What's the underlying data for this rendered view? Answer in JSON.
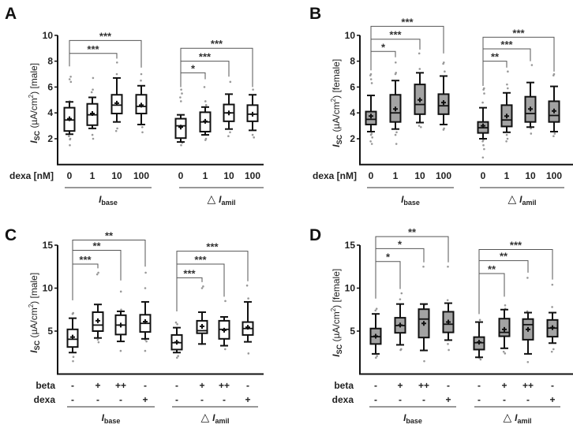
{
  "chart_data": [
    {
      "type": "box",
      "panel": "A",
      "ylabel": {
        "main": "I",
        "sub": "SC",
        "unit": " (µA/cm",
        "sup": "2",
        "tail": ") [male]"
      },
      "ylim": [
        0,
        10
      ],
      "yticks": [
        2,
        4,
        6,
        8,
        10
      ],
      "fill": "#ffffff",
      "row_labels": [
        "dexa [nM]"
      ],
      "groups": [
        {
          "label": "I",
          "sub": "base",
          "prefix": "",
          "categories": [
            [
              "0"
            ],
            [
              "1"
            ],
            [
              "10"
            ],
            [
              "100"
            ]
          ],
          "boxes": [
            {
              "wl": 2.35,
              "q1": 2.6,
              "med": 3.45,
              "q3": 4.4,
              "wh": 4.85,
              "mean": 3.55,
              "pts": [
                1.5,
                1.95,
                2.0,
                2.2,
                4.9,
                6.4,
                6.6,
                6.8
              ]
            },
            {
              "wl": 2.8,
              "q1": 3.05,
              "med": 3.85,
              "q3": 4.7,
              "wh": 5.2,
              "mean": 3.95,
              "pts": [
                2.0,
                2.3,
                2.8,
                5.6,
                5.8,
                6.7
              ]
            },
            {
              "wl": 3.3,
              "q1": 3.95,
              "med": 4.6,
              "q3": 5.4,
              "wh": 6.7,
              "mean": 4.75,
              "pts": [
                2.6,
                2.8,
                7.0,
                7.9
              ]
            },
            {
              "wl": 3.1,
              "q1": 3.95,
              "med": 4.5,
              "q3": 5.4,
              "wh": 6.1,
              "mean": 4.6,
              "pts": [
                2.5,
                2.9,
                6.5,
                7.0
              ]
            }
          ],
          "brackets": [
            {
              "from": 0,
              "to": 2,
              "y": 8.6,
              "left_end": 7.6,
              "right_end": 8.2,
              "label": "***"
            },
            {
              "from": 0,
              "to": 3,
              "y": 9.6,
              "left_end": 7.6,
              "right_end": 7.5,
              "label": "***"
            }
          ]
        },
        {
          "label": "I",
          "sub": "amil",
          "prefix": "△ ",
          "categories": [
            [
              "0"
            ],
            [
              "1"
            ],
            [
              "10"
            ],
            [
              "100"
            ]
          ],
          "boxes": [
            {
              "wl": 1.75,
              "q1": 2.05,
              "med": 3.0,
              "q3": 3.55,
              "wh": 3.85,
              "mean": 2.9,
              "pts": [
                1.5,
                1.7,
                4.9,
                5.2,
                5.5,
                5.8
              ]
            },
            {
              "wl": 2.3,
              "q1": 2.55,
              "med": 3.3,
              "q3": 4.05,
              "wh": 4.45,
              "mean": 3.35,
              "pts": [
                1.9,
                2.0,
                4.6,
                4.9,
                6.0
              ]
            },
            {
              "wl": 2.75,
              "q1": 3.35,
              "med": 4.0,
              "q3": 4.65,
              "wh": 5.45,
              "mean": 4.0,
              "pts": [
                2.2,
                2.5,
                6.4
              ]
            },
            {
              "wl": 2.65,
              "q1": 3.35,
              "med": 3.9,
              "q3": 4.6,
              "wh": 5.4,
              "mean": 3.9,
              "pts": [
                2.1,
                2.3,
                5.8
              ]
            }
          ],
          "brackets": [
            {
              "from": 0,
              "to": 1,
              "y": 7.1,
              "left_end": 6.0,
              "right_end": 6.6,
              "label": "*"
            },
            {
              "from": 0,
              "to": 2,
              "y": 8.0,
              "left_end": 6.0,
              "right_end": 6.8,
              "label": "***"
            },
            {
              "from": 0,
              "to": 3,
              "y": 9.0,
              "left_end": 6.0,
              "right_end": 6.0,
              "label": "***"
            }
          ]
        }
      ]
    },
    {
      "type": "box",
      "panel": "B",
      "ylabel": {
        "main": "I",
        "sub": "SC",
        "unit": " (µA/cm",
        "sup": "2",
        "tail": ") [female]"
      },
      "ylim": [
        0,
        10
      ],
      "yticks": [
        2,
        4,
        6,
        8,
        10
      ],
      "fill": "#a3a3a3",
      "row_labels": [
        "dexa [nM]"
      ],
      "groups": [
        {
          "label": "I",
          "sub": "base",
          "prefix": "",
          "categories": [
            [
              "0"
            ],
            [
              "1"
            ],
            [
              "10"
            ],
            [
              "100"
            ]
          ],
          "boxes": [
            {
              "wl": 2.55,
              "q1": 3.1,
              "med": 3.5,
              "q3": 4.1,
              "wh": 5.35,
              "mean": 3.75,
              "pts": [
                1.6,
                1.8,
                2.1,
                2.3,
                2.4,
                6.3,
                6.6,
                6.9,
                7.0
              ]
            },
            {
              "wl": 2.75,
              "q1": 3.3,
              "med": 4.0,
              "q3": 5.4,
              "wh": 6.5,
              "mean": 4.3,
              "pts": [
                1.6,
                2.3,
                2.5,
                7.0,
                7.1,
                7.9
              ]
            },
            {
              "wl": 3.25,
              "q1": 3.9,
              "med": 4.65,
              "q3": 6.2,
              "wh": 7.1,
              "mean": 5.0,
              "pts": [
                2.9,
                3.0,
                7.4,
                8.6
              ]
            },
            {
              "wl": 3.1,
              "q1": 3.9,
              "med": 4.55,
              "q3": 5.45,
              "wh": 6.85,
              "mean": 4.8,
              "pts": [
                2.7,
                2.8,
                7.2,
                7.8,
                7.9
              ]
            }
          ],
          "brackets": [
            {
              "from": 0,
              "to": 1,
              "y": 8.75,
              "left_end": 7.3,
              "right_end": 8.3,
              "label": "*"
            },
            {
              "from": 0,
              "to": 2,
              "y": 9.7,
              "left_end": 7.3,
              "right_end": 8.9,
              "label": "***"
            },
            {
              "from": 0,
              "to": 3,
              "y": 10.7,
              "left_end": 7.3,
              "right_end": 8.6,
              "label": "***"
            }
          ]
        },
        {
          "label": "I",
          "sub": "amil",
          "prefix": "△ ",
          "categories": [
            [
              "0"
            ],
            [
              "1"
            ],
            [
              "10"
            ],
            [
              "100"
            ]
          ],
          "boxes": [
            {
              "wl": 2.0,
              "q1": 2.45,
              "med": 2.85,
              "q3": 3.3,
              "wh": 4.4,
              "mean": 3.0,
              "pts": [
                0.55,
                1.2,
                1.5,
                1.8,
                1.9,
                4.8,
                5.5,
                5.8,
                5.9
              ]
            },
            {
              "wl": 2.5,
              "q1": 2.95,
              "med": 3.45,
              "q3": 4.6,
              "wh": 5.55,
              "mean": 3.75,
              "pts": [
                1.8,
                2.0,
                2.3,
                5.9,
                6.2,
                7.2
              ]
            },
            {
              "wl": 2.9,
              "q1": 3.3,
              "med": 3.95,
              "q3": 5.25,
              "wh": 6.35,
              "mean": 4.3,
              "pts": [
                2.4,
                2.8,
                7.7
              ]
            },
            {
              "wl": 2.55,
              "q1": 3.3,
              "med": 3.8,
              "q3": 4.9,
              "wh": 6.05,
              "mean": 4.15,
              "pts": [
                2.2,
                2.4,
                6.9,
                7.0
              ]
            }
          ],
          "brackets": [
            {
              "from": 0,
              "to": 1,
              "y": 8.0,
              "left_end": 6.1,
              "right_end": 7.5,
              "label": "**"
            },
            {
              "from": 0,
              "to": 2,
              "y": 8.95,
              "left_end": 6.1,
              "right_end": 8.0,
              "label": "***"
            },
            {
              "from": 0,
              "to": 3,
              "y": 9.85,
              "left_end": 6.1,
              "right_end": 7.2,
              "label": "***"
            }
          ]
        }
      ]
    },
    {
      "type": "box",
      "panel": "C",
      "ylabel": {
        "main": "I",
        "sub": "SC",
        "unit": " (µA/cm",
        "sup": "2",
        "tail": ") [male]"
      },
      "ylim": [
        0,
        15
      ],
      "yticks": [
        5,
        10,
        15
      ],
      "fill": "#ffffff",
      "row_labels": [
        "beta",
        "dexa"
      ],
      "groups": [
        {
          "label": "I",
          "sub": "base",
          "prefix": "",
          "categories": [
            [
              "-",
              "-"
            ],
            [
              "+",
              "-"
            ],
            [
              "++",
              "-"
            ],
            [
              "-",
              "+"
            ]
          ],
          "boxes": [
            {
              "wl": 2.5,
              "q1": 3.15,
              "med": 4.05,
              "q3": 5.2,
              "wh": 6.5,
              "mean": 4.3,
              "pts": [
                1.5,
                2.0,
                7.0,
                7.1
              ]
            },
            {
              "wl": 4.2,
              "q1": 5.0,
              "med": 5.7,
              "q3": 7.2,
              "wh": 8.1,
              "mean": 6.2,
              "pts": [
                3.7,
                4.0,
                11.6,
                11.8
              ]
            },
            {
              "wl": 3.8,
              "q1": 4.6,
              "med": 5.7,
              "q3": 6.85,
              "wh": 7.3,
              "mean": 5.7,
              "pts": [
                2.7,
                7.5,
                9.6
              ]
            },
            {
              "wl": 4.1,
              "q1": 4.9,
              "med": 5.9,
              "q3": 6.9,
              "wh": 8.4,
              "mean": 6.1,
              "pts": [
                2.7,
                3.8,
                4.0,
                10.0,
                11.8
              ]
            }
          ],
          "brackets": [
            {
              "from": 0,
              "to": 1,
              "y": 12.8,
              "left_end": 8.6,
              "right_end": 12.3,
              "label": "***"
            },
            {
              "from": 0,
              "to": 2,
              "y": 14.4,
              "left_end": 8.6,
              "right_end": 10.9,
              "label": "**"
            },
            {
              "from": 0,
              "to": 3,
              "y": 15.6,
              "left_end": 8.6,
              "right_end": 12.5,
              "label": "**"
            }
          ]
        },
        {
          "label": "I",
          "sub": "amil",
          "prefix": "△ ",
          "categories": [
            [
              "-",
              "-"
            ],
            [
              "+",
              "-"
            ],
            [
              "++",
              "-"
            ],
            [
              "-",
              "+"
            ]
          ],
          "boxes": [
            {
              "wl": 2.5,
              "q1": 2.85,
              "med": 3.65,
              "q3": 4.55,
              "wh": 5.4,
              "mean": 3.7,
              "pts": [
                1.9,
                2.1,
                5.8,
                6.0
              ]
            },
            {
              "wl": 3.5,
              "q1": 4.75,
              "med": 5.05,
              "q3": 6.2,
              "wh": 7.2,
              "mean": 5.55,
              "pts": [
                3.5,
                10.0,
                10.2
              ]
            },
            {
              "wl": 3.3,
              "q1": 4.1,
              "med": 5.2,
              "q3": 6.2,
              "wh": 6.65,
              "mean": 5.1,
              "pts": [
                2.9,
                8.5
              ]
            },
            {
              "wl": 3.75,
              "q1": 4.55,
              "med": 5.3,
              "q3": 6.05,
              "wh": 8.4,
              "mean": 5.45,
              "pts": [
                2.4,
                8.8,
                10.3
              ]
            }
          ],
          "brackets": [
            {
              "from": 0,
              "to": 1,
              "y": 11.2,
              "left_end": 7.3,
              "right_end": 10.7,
              "label": "***"
            },
            {
              "from": 0,
              "to": 2,
              "y": 12.8,
              "left_end": 7.3,
              "right_end": 9.0,
              "label": "***"
            },
            {
              "from": 0,
              "to": 3,
              "y": 14.3,
              "left_end": 7.3,
              "right_end": 10.8,
              "label": "***"
            }
          ]
        }
      ]
    },
    {
      "type": "box",
      "panel": "D",
      "ylabel": {
        "main": "I",
        "sub": "SC",
        "unit": " (µA/cm",
        "sup": "2",
        "tail": ") [female]"
      },
      "ylim": [
        0,
        15
      ],
      "yticks": [
        5,
        10,
        15
      ],
      "fill": "#a3a3a3",
      "row_labels": [
        "beta",
        "dexa"
      ],
      "groups": [
        {
          "label": "I",
          "sub": "base",
          "prefix": "",
          "categories": [
            [
              "-",
              "-"
            ],
            [
              "+",
              "-"
            ],
            [
              "++",
              "-"
            ],
            [
              "-",
              "+"
            ]
          ],
          "boxes": [
            {
              "wl": 2.35,
              "q1": 3.5,
              "med": 4.35,
              "q3": 5.3,
              "wh": 7.0,
              "mean": 4.4,
              "pts": [
                1.9,
                2.1,
                7.4,
                7.6
              ]
            },
            {
              "wl": 3.4,
              "q1": 4.8,
              "med": 5.65,
              "q3": 6.55,
              "wh": 8.15,
              "mean": 5.7,
              "pts": [
                2.8,
                2.9,
                8.7,
                9.4
              ]
            },
            {
              "wl": 2.75,
              "q1": 4.25,
              "med": 6.4,
              "q3": 7.55,
              "wh": 8.15,
              "mean": 5.9,
              "pts": [
                1.5,
                8.1,
                12.5
              ]
            },
            {
              "wl": 3.95,
              "q1": 4.85,
              "med": 5.8,
              "q3": 7.25,
              "wh": 8.25,
              "mean": 6.05,
              "pts": [
                2.8,
                3.5,
                8.6,
                12.5
              ]
            }
          ],
          "brackets": [
            {
              "from": 0,
              "to": 1,
              "y": 13.1,
              "left_end": 8.8,
              "right_end": 9.9,
              "label": "*"
            },
            {
              "from": 0,
              "to": 2,
              "y": 14.6,
              "left_end": 8.8,
              "right_end": 13.0,
              "label": "*"
            },
            {
              "from": 0,
              "to": 3,
              "y": 16.0,
              "left_end": 8.8,
              "right_end": 13.0,
              "label": "**"
            }
          ]
        },
        {
          "label": "I",
          "sub": "amil",
          "prefix": "△ ",
          "categories": [
            [
              "-",
              "-"
            ],
            [
              "+",
              "-"
            ],
            [
              "++",
              "-"
            ],
            [
              "-",
              "+"
            ]
          ],
          "boxes": [
            {
              "wl": 1.95,
              "q1": 2.85,
              "med": 3.65,
              "q3": 4.3,
              "wh": 6.05,
              "mean": 3.7,
              "pts": [
                1.7,
                1.9,
                6.3
              ]
            },
            {
              "wl": 3.0,
              "q1": 4.4,
              "med": 4.85,
              "q3": 6.45,
              "wh": 7.5,
              "mean": 5.2,
              "pts": [
                2.4,
                2.6,
                7.6,
                8.0
              ]
            },
            {
              "wl": 2.35,
              "q1": 4.0,
              "med": 5.75,
              "q3": 6.4,
              "wh": 7.15,
              "mean": 5.2,
              "pts": [
                1.4,
                7.3,
                11.2
              ]
            },
            {
              "wl": 3.6,
              "q1": 4.35,
              "med": 5.35,
              "q3": 6.3,
              "wh": 7.15,
              "mean": 5.4,
              "pts": [
                2.6,
                2.9,
                7.8,
                10.4
              ]
            }
          ],
          "brackets": [
            {
              "from": 0,
              "to": 1,
              "y": 11.7,
              "left_end": 7.0,
              "right_end": 9.0,
              "label": "**"
            },
            {
              "from": 0,
              "to": 2,
              "y": 13.2,
              "left_end": 7.0,
              "right_end": 11.8,
              "label": "**"
            },
            {
              "from": 0,
              "to": 3,
              "y": 14.5,
              "left_end": 7.0,
              "right_end": 11.0,
              "label": "***"
            }
          ]
        }
      ]
    }
  ]
}
